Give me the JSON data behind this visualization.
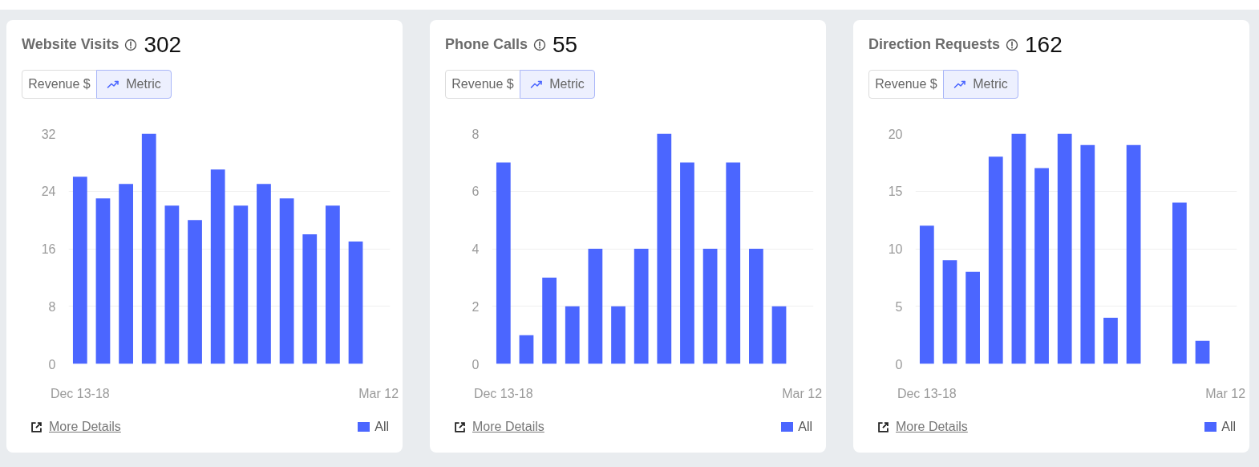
{
  "chart_data": [
    {
      "type": "bar",
      "title": "Website Visits",
      "subtitle": "302",
      "annotations": [
        "Revenue $",
        "Metric",
        "More Details"
      ],
      "categories": [
        "Dec 13-18",
        null,
        null,
        null,
        null,
        null,
        null,
        null,
        null,
        null,
        null,
        null,
        null,
        "Mar 12"
      ],
      "series": [
        {
          "name": "All",
          "color": "#4b66ff",
          "values": [
            26,
            23,
            25,
            32,
            22,
            20,
            27,
            22,
            25,
            23,
            18,
            22,
            17,
            null
          ]
        }
      ],
      "ylim": [
        0,
        32
      ],
      "yticks": [
        0,
        8,
        16,
        24,
        32
      ],
      "grid": "y",
      "legend": "bottom right"
    },
    {
      "type": "bar",
      "title": "Phone Calls",
      "subtitle": "55",
      "annotations": [
        "Revenue $",
        "Metric",
        "More Details"
      ],
      "categories": [
        "Dec 13-18",
        null,
        null,
        null,
        null,
        null,
        null,
        null,
        null,
        null,
        null,
        null,
        null,
        "Mar 12"
      ],
      "series": [
        {
          "name": "All",
          "color": "#4b66ff",
          "values": [
            7,
            1,
            3,
            2,
            4,
            2,
            4,
            8,
            7,
            4,
            7,
            4,
            2,
            null
          ]
        }
      ],
      "ylim": [
        0,
        8
      ],
      "yticks": [
        0,
        2,
        4,
        6,
        8
      ],
      "grid": "y",
      "legend": "bottom right"
    },
    {
      "type": "bar",
      "title": "Direction Requests",
      "subtitle": "162",
      "annotations": [
        "Revenue $",
        "Metric",
        "More Details"
      ],
      "categories": [
        "Dec 13-18",
        null,
        null,
        null,
        null,
        null,
        null,
        null,
        null,
        null,
        null,
        null,
        null,
        "Mar 12"
      ],
      "series": [
        {
          "name": "All",
          "color": "#4b66ff",
          "values": [
            12,
            9,
            8,
            18,
            20,
            17,
            20,
            19,
            4,
            19,
            0,
            14,
            2,
            null
          ]
        }
      ],
      "ylim": [
        0,
        20
      ],
      "yticks": [
        0,
        5,
        10,
        15,
        20
      ],
      "grid": "y",
      "legend": "bottom right"
    }
  ]
}
